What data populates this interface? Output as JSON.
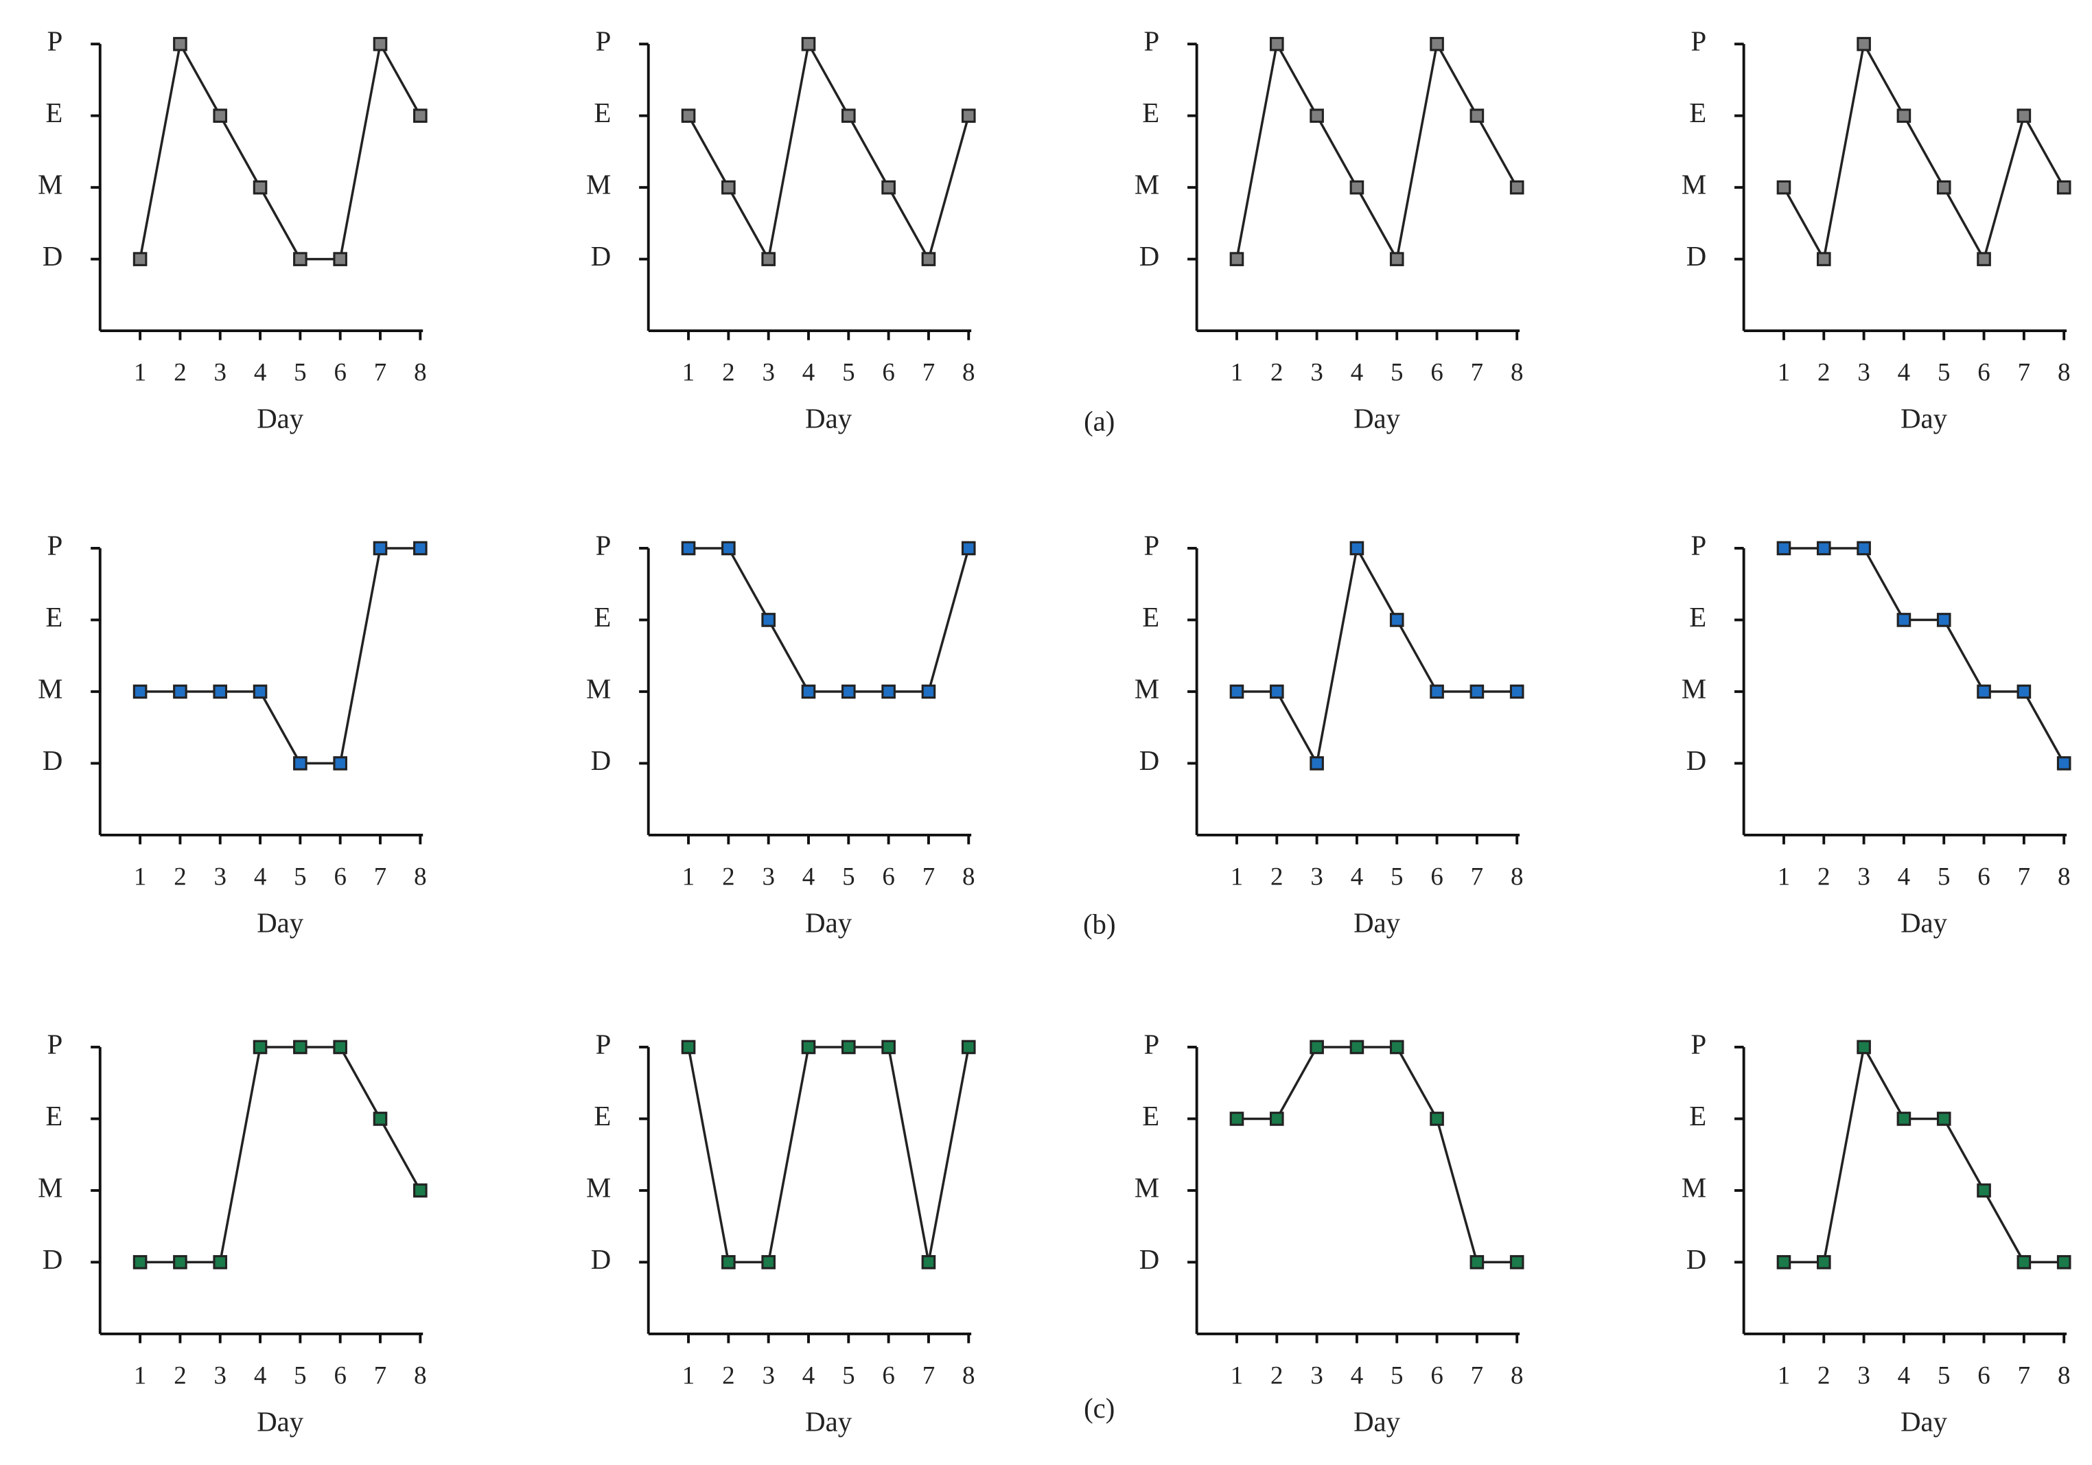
{
  "chart_data": [
    {
      "type": "line",
      "xlabel": "Day",
      "x": [
        1,
        2,
        3,
        4,
        5,
        6,
        7,
        8
      ],
      "values": [
        1,
        4,
        3,
        2,
        1,
        1,
        4,
        3
      ],
      "color": "#7f7f7f",
      "xlim": [
        0,
        8
      ],
      "xticks": [
        1,
        2,
        3,
        4,
        5,
        6,
        7,
        8
      ],
      "ylim": [
        0,
        4
      ],
      "yticks": [
        {
          "value": 1,
          "label": "D"
        },
        {
          "value": 2,
          "label": "M"
        },
        {
          "value": 3,
          "label": "E"
        },
        {
          "value": 4,
          "label": "P"
        }
      ]
    },
    {
      "type": "line",
      "xlabel": "Day",
      "x": [
        1,
        2,
        3,
        4,
        5,
        6,
        7,
        8
      ],
      "values": [
        3,
        2,
        1,
        4,
        3,
        2,
        1,
        3
      ],
      "color": "#7f7f7f",
      "xlim": [
        0,
        8
      ],
      "xticks": [
        1,
        2,
        3,
        4,
        5,
        6,
        7,
        8
      ],
      "ylim": [
        0,
        4
      ],
      "yticks": [
        {
          "value": 1,
          "label": "D"
        },
        {
          "value": 2,
          "label": "M"
        },
        {
          "value": 3,
          "label": "E"
        },
        {
          "value": 4,
          "label": "P"
        }
      ]
    },
    {
      "type": "line",
      "xlabel": "Day",
      "x": [
        1,
        2,
        3,
        4,
        5,
        6,
        7,
        8
      ],
      "values": [
        1,
        4,
        3,
        2,
        1,
        4,
        3,
        2
      ],
      "color": "#7f7f7f",
      "xlim": [
        0,
        8
      ],
      "xticks": [
        1,
        2,
        3,
        4,
        5,
        6,
        7,
        8
      ],
      "ylim": [
        0,
        4
      ],
      "yticks": [
        {
          "value": 1,
          "label": "D"
        },
        {
          "value": 2,
          "label": "M"
        },
        {
          "value": 3,
          "label": "E"
        },
        {
          "value": 4,
          "label": "P"
        }
      ]
    },
    {
      "type": "line",
      "xlabel": "Day",
      "x": [
        1,
        2,
        3,
        4,
        5,
        6,
        7,
        8
      ],
      "values": [
        2,
        1,
        4,
        3,
        2,
        1,
        3,
        2
      ],
      "color": "#7f7f7f",
      "xlim": [
        0,
        8
      ],
      "xticks": [
        1,
        2,
        3,
        4,
        5,
        6,
        7,
        8
      ],
      "ylim": [
        0,
        4
      ],
      "yticks": [
        {
          "value": 1,
          "label": "D"
        },
        {
          "value": 2,
          "label": "M"
        },
        {
          "value": 3,
          "label": "E"
        },
        {
          "value": 4,
          "label": "P"
        }
      ]
    },
    {
      "type": "line",
      "xlabel": "Day",
      "x": [
        1,
        2,
        3,
        4,
        5,
        6,
        7,
        8
      ],
      "values": [
        2,
        2,
        2,
        2,
        1,
        1,
        4,
        4
      ],
      "color": "#1f6fc4",
      "xlim": [
        0,
        8
      ],
      "xticks": [
        1,
        2,
        3,
        4,
        5,
        6,
        7,
        8
      ],
      "ylim": [
        0,
        4
      ],
      "yticks": [
        {
          "value": 1,
          "label": "D"
        },
        {
          "value": 2,
          "label": "M"
        },
        {
          "value": 3,
          "label": "E"
        },
        {
          "value": 4,
          "label": "P"
        }
      ]
    },
    {
      "type": "line",
      "xlabel": "Day",
      "x": [
        1,
        2,
        3,
        4,
        5,
        6,
        7,
        8
      ],
      "values": [
        4,
        4,
        3,
        2,
        2,
        2,
        2,
        4
      ],
      "color": "#1f6fc4",
      "xlim": [
        0,
        8
      ],
      "xticks": [
        1,
        2,
        3,
        4,
        5,
        6,
        7,
        8
      ],
      "ylim": [
        0,
        4
      ],
      "yticks": [
        {
          "value": 1,
          "label": "D"
        },
        {
          "value": 2,
          "label": "M"
        },
        {
          "value": 3,
          "label": "E"
        },
        {
          "value": 4,
          "label": "P"
        }
      ]
    },
    {
      "type": "line",
      "xlabel": "Day",
      "x": [
        1,
        2,
        3,
        4,
        5,
        6,
        7,
        8
      ],
      "values": [
        2,
        2,
        1,
        4,
        3,
        2,
        2,
        2
      ],
      "color": "#1f6fc4",
      "xlim": [
        0,
        8
      ],
      "xticks": [
        1,
        2,
        3,
        4,
        5,
        6,
        7,
        8
      ],
      "ylim": [
        0,
        4
      ],
      "yticks": [
        {
          "value": 1,
          "label": "D"
        },
        {
          "value": 2,
          "label": "M"
        },
        {
          "value": 3,
          "label": "E"
        },
        {
          "value": 4,
          "label": "P"
        }
      ]
    },
    {
      "type": "line",
      "xlabel": "Day",
      "x": [
        1,
        2,
        3,
        4,
        5,
        6,
        7,
        8
      ],
      "values": [
        4,
        4,
        4,
        3,
        3,
        2,
        2,
        1
      ],
      "color": "#1f6fc4",
      "xlim": [
        0,
        8
      ],
      "xticks": [
        1,
        2,
        3,
        4,
        5,
        6,
        7,
        8
      ],
      "ylim": [
        0,
        4
      ],
      "yticks": [
        {
          "value": 1,
          "label": "D"
        },
        {
          "value": 2,
          "label": "M"
        },
        {
          "value": 3,
          "label": "E"
        },
        {
          "value": 4,
          "label": "P"
        }
      ]
    },
    {
      "type": "line",
      "xlabel": "Day",
      "x": [
        1,
        2,
        3,
        4,
        5,
        6,
        7,
        8
      ],
      "values": [
        1,
        1,
        1,
        4,
        4,
        4,
        3,
        2
      ],
      "color": "#1a7a4a",
      "xlim": [
        0,
        8
      ],
      "xticks": [
        1,
        2,
        3,
        4,
        5,
        6,
        7,
        8
      ],
      "ylim": [
        0,
        4
      ],
      "yticks": [
        {
          "value": 1,
          "label": "D"
        },
        {
          "value": 2,
          "label": "M"
        },
        {
          "value": 3,
          "label": "E"
        },
        {
          "value": 4,
          "label": "P"
        }
      ]
    },
    {
      "type": "line",
      "xlabel": "Day",
      "x": [
        1,
        2,
        3,
        4,
        5,
        6,
        7,
        8
      ],
      "values": [
        4,
        1,
        1,
        4,
        4,
        4,
        1,
        4
      ],
      "color": "#1a7a4a",
      "xlim": [
        0,
        8
      ],
      "xticks": [
        1,
        2,
        3,
        4,
        5,
        6,
        7,
        8
      ],
      "ylim": [
        0,
        4
      ],
      "yticks": [
        {
          "value": 1,
          "label": "D"
        },
        {
          "value": 2,
          "label": "M"
        },
        {
          "value": 3,
          "label": "E"
        },
        {
          "value": 4,
          "label": "P"
        }
      ]
    },
    {
      "type": "line",
      "xlabel": "Day",
      "x": [
        1,
        2,
        3,
        4,
        5,
        6,
        7,
        8
      ],
      "values": [
        3,
        3,
        4,
        4,
        4,
        3,
        1,
        1
      ],
      "color": "#1a7a4a",
      "xlim": [
        0,
        8
      ],
      "xticks": [
        1,
        2,
        3,
        4,
        5,
        6,
        7,
        8
      ],
      "ylim": [
        0,
        4
      ],
      "yticks": [
        {
          "value": 1,
          "label": "D"
        },
        {
          "value": 2,
          "label": "M"
        },
        {
          "value": 3,
          "label": "E"
        },
        {
          "value": 4,
          "label": "P"
        }
      ]
    },
    {
      "type": "line",
      "xlabel": "Day",
      "x": [
        1,
        2,
        3,
        4,
        5,
        6,
        7,
        8
      ],
      "values": [
        1,
        1,
        4,
        3,
        3,
        2,
        1,
        1
      ],
      "color": "#1a7a4a",
      "xlim": [
        0,
        8
      ],
      "xticks": [
        1,
        2,
        3,
        4,
        5,
        6,
        7,
        8
      ],
      "ylim": [
        0,
        4
      ],
      "yticks": [
        {
          "value": 1,
          "label": "D"
        },
        {
          "value": 2,
          "label": "M"
        },
        {
          "value": 3,
          "label": "E"
        },
        {
          "value": 4,
          "label": "P"
        }
      ]
    }
  ],
  "panel_labels": [
    "(a)",
    "(b)",
    "(c)"
  ]
}
